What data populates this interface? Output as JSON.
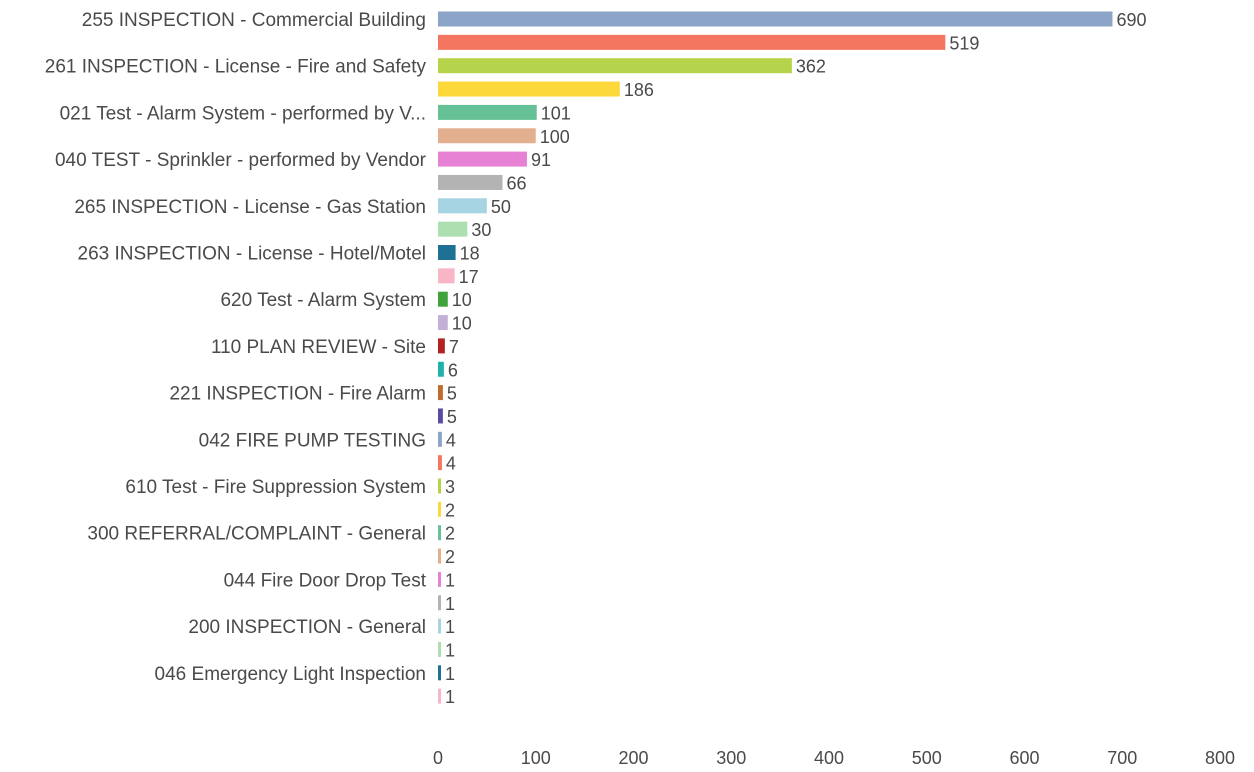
{
  "chart_data": {
    "type": "bar",
    "orientation": "horizontal",
    "categories": [
      "255 INSPECTION - Commercial Building",
      "",
      "261 INSPECTION - License - Fire and Safety",
      "",
      "021 Test - Alarm System - performed by V...",
      "",
      "040 TEST - Sprinkler - performed by Vendor",
      "",
      "265 INSPECTION - License - Gas Station",
      "",
      "263 INSPECTION - License - Hotel/Motel",
      "",
      "620 Test - Alarm System",
      "",
      "110 PLAN REVIEW - Site",
      "",
      "221 INSPECTION - Fire Alarm",
      "",
      "042 FIRE PUMP TESTING",
      "",
      "610 Test - Fire Suppression System",
      "",
      "300 REFERRAL/COMPLAINT - General",
      "",
      "044 Fire Door Drop Test",
      "",
      "200 INSPECTION - General",
      "",
      "046 Emergency Light Inspection",
      ""
    ],
    "values": [
      690,
      519,
      362,
      186,
      101,
      100,
      91,
      66,
      50,
      30,
      18,
      17,
      10,
      10,
      7,
      6,
      5,
      5,
      4,
      4,
      3,
      2,
      2,
      2,
      1,
      1,
      1,
      1,
      1,
      1
    ],
    "value_labels": [
      "690",
      "519",
      "362",
      "186",
      "101",
      "100",
      "91",
      "66",
      "50",
      "30",
      "18",
      "17",
      "10",
      "10",
      "7",
      "6",
      "5",
      "5",
      "4",
      "4",
      "3",
      "2",
      "2",
      "2",
      "1",
      "1",
      "1",
      "1",
      "1",
      "1"
    ],
    "colors": [
      "#8da4c9",
      "#f47560",
      "#b5d34b",
      "#fdd83a",
      "#66c296",
      "#e3b08f",
      "#e781d3",
      "#b3b3b3",
      "#a6d4e2",
      "#addfb1",
      "#1e7194",
      "#f8b5c5",
      "#3fa23a",
      "#c3b0d8",
      "#b22222",
      "#20b2aa",
      "#c26b2e",
      "#5b4aa0",
      "#8da4c9",
      "#f47560",
      "#b5d34b",
      "#fdd83a",
      "#66c296",
      "#e3b08f",
      "#e781d3",
      "#b3b3b3",
      "#a6d4e2",
      "#addfb1",
      "#1e7194",
      "#f8b5c5"
    ],
    "xlim": [
      0,
      800
    ],
    "x_ticks": [
      "0",
      "100",
      "200",
      "300",
      "400",
      "500",
      "600",
      "700",
      "800"
    ],
    "xlabel": "",
    "ylabel": "",
    "title": "",
    "grid": false,
    "legend": "none"
  }
}
